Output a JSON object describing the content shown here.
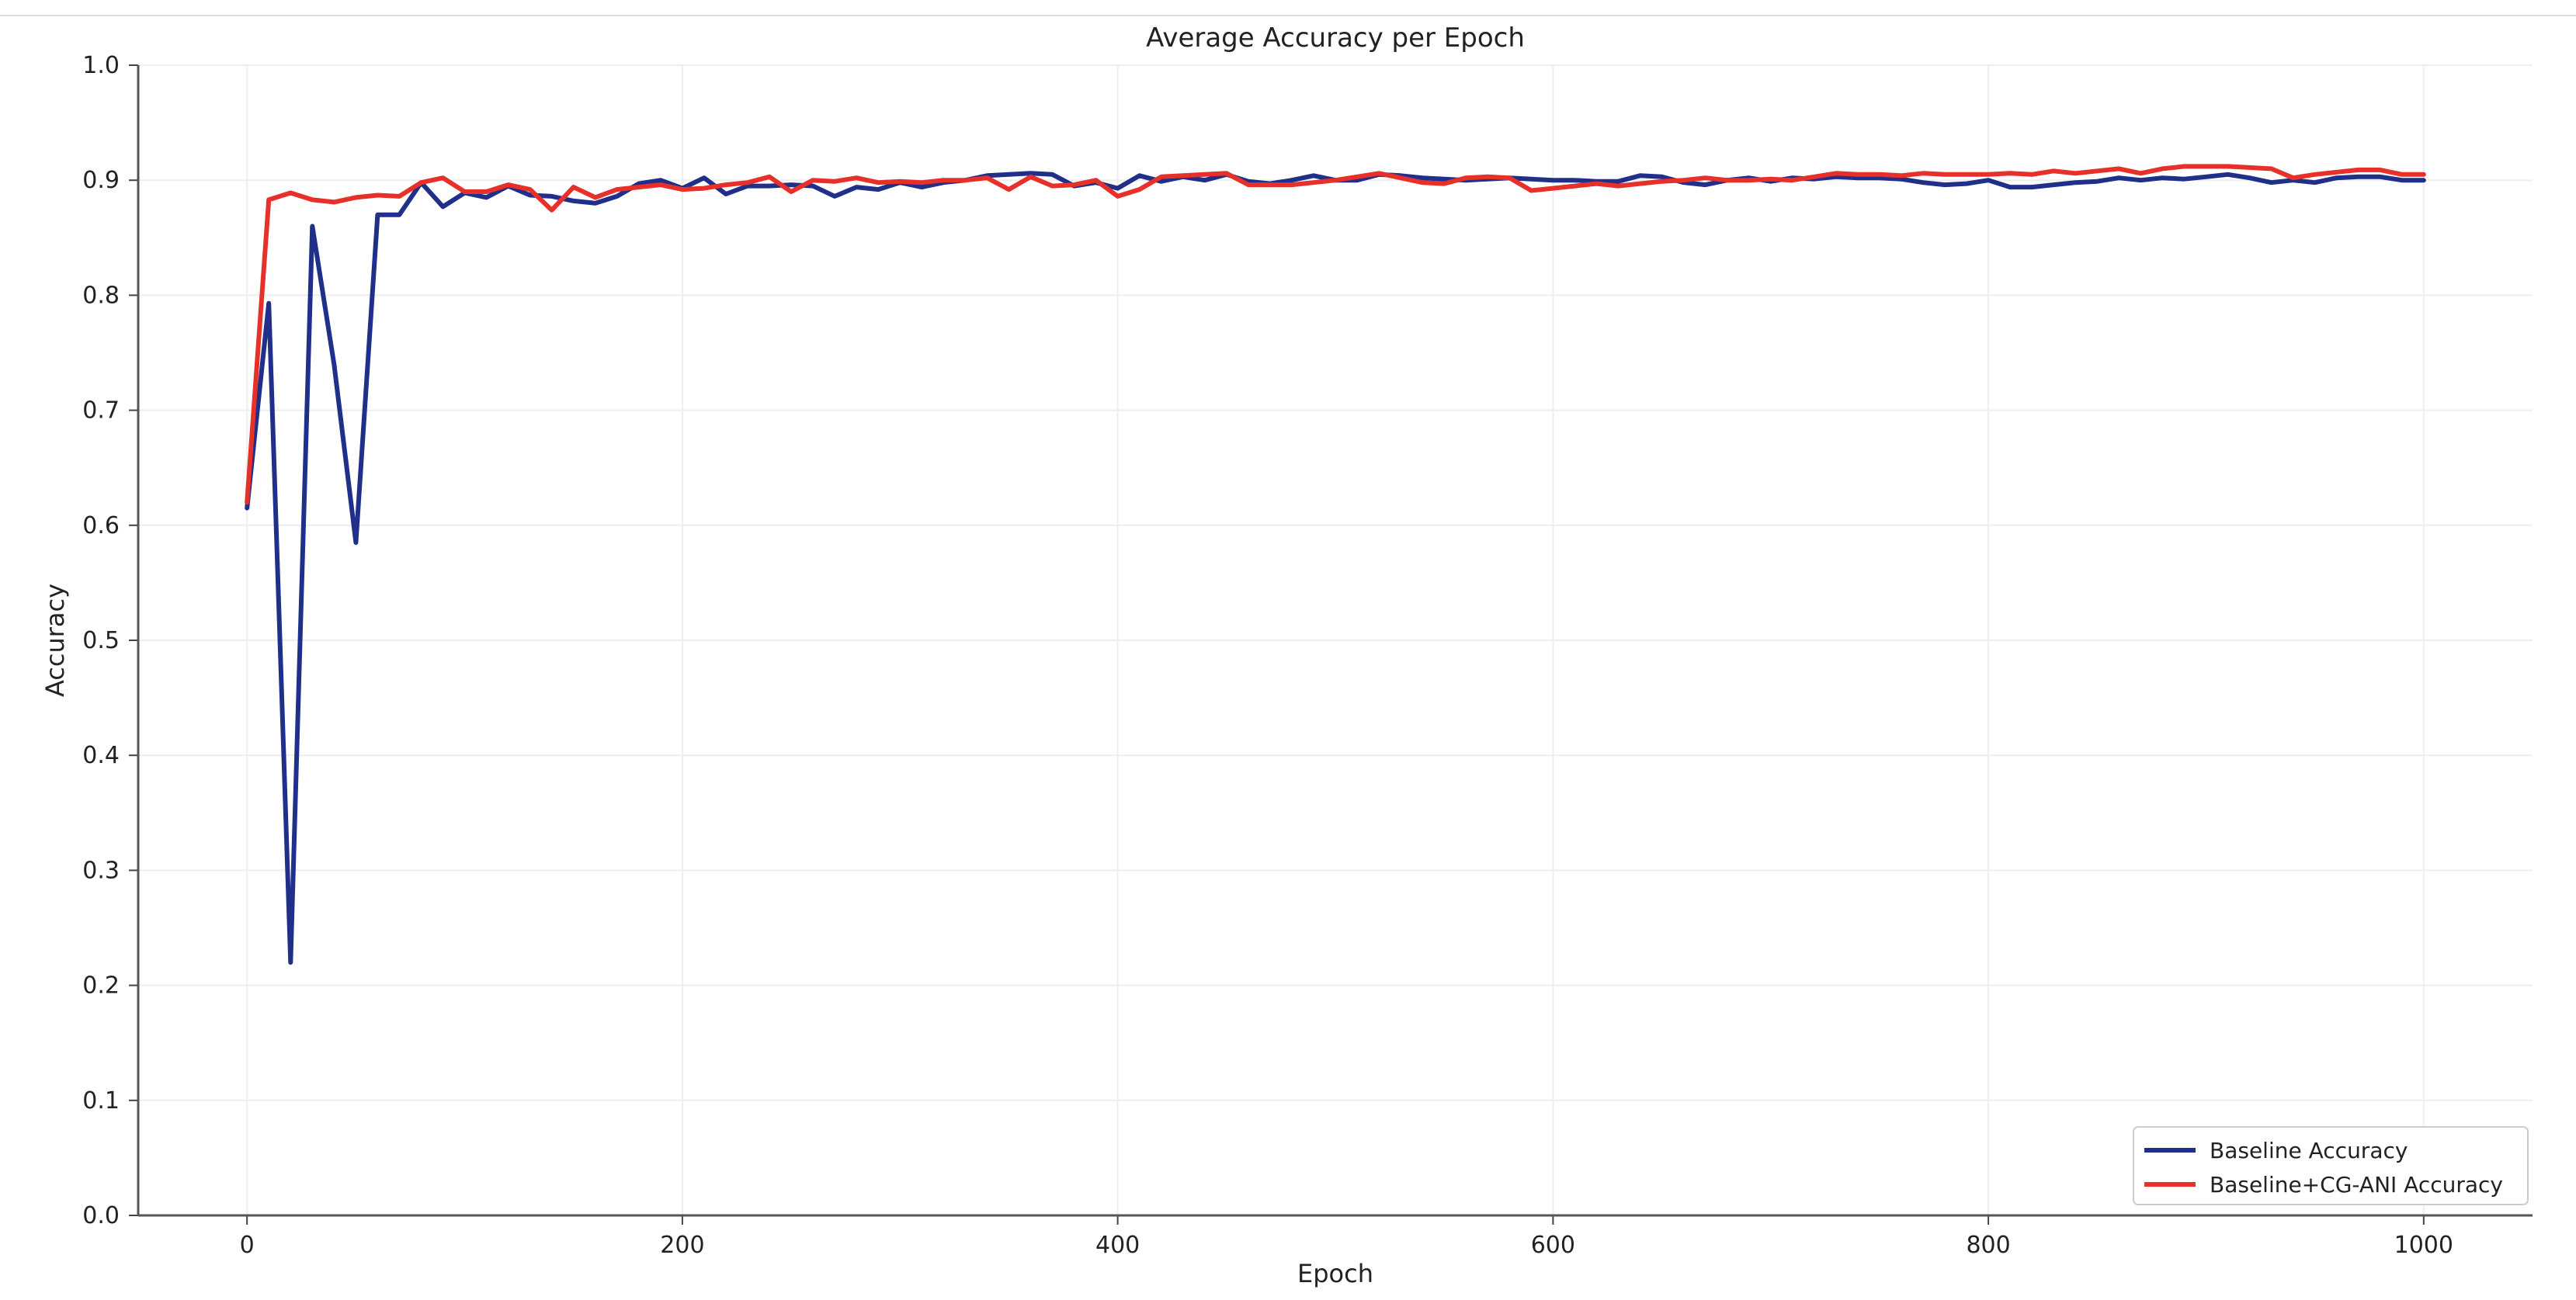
{
  "chart_data": {
    "type": "line",
    "title": "Average Accuracy per Epoch",
    "xlabel": "Epoch",
    "ylabel": "Accuracy",
    "xlim": [
      -50,
      1050
    ],
    "ylim": [
      0.0,
      1.0
    ],
    "xticks": [
      0,
      200,
      400,
      600,
      800,
      1000
    ],
    "yticks": [
      0.0,
      0.1,
      0.2,
      0.3,
      0.4,
      0.5,
      0.6,
      0.7,
      0.8,
      0.9,
      1.0
    ],
    "grid": true,
    "legend_position": "bottom-right",
    "series": [
      {
        "name": "Baseline Accuracy",
        "color": "#1f2f8a",
        "points": [
          [
            0,
            0.615
          ],
          [
            10,
            0.793
          ],
          [
            20,
            0.22
          ],
          [
            30,
            0.86
          ],
          [
            40,
            0.74
          ],
          [
            50,
            0.585
          ],
          [
            60,
            0.87
          ],
          [
            70,
            0.87
          ],
          [
            80,
            0.898
          ],
          [
            90,
            0.877
          ],
          [
            100,
            0.889
          ],
          [
            110,
            0.885
          ],
          [
            120,
            0.895
          ],
          [
            130,
            0.887
          ],
          [
            140,
            0.886
          ],
          [
            150,
            0.882
          ],
          [
            160,
            0.88
          ],
          [
            170,
            0.886
          ],
          [
            180,
            0.897
          ],
          [
            190,
            0.9
          ],
          [
            200,
            0.893
          ],
          [
            210,
            0.902
          ],
          [
            220,
            0.888
          ],
          [
            230,
            0.895
          ],
          [
            240,
            0.895
          ],
          [
            250,
            0.896
          ],
          [
            260,
            0.895
          ],
          [
            270,
            0.886
          ],
          [
            280,
            0.894
          ],
          [
            290,
            0.892
          ],
          [
            300,
            0.898
          ],
          [
            310,
            0.894
          ],
          [
            320,
            0.898
          ],
          [
            330,
            0.9
          ],
          [
            340,
            0.904
          ],
          [
            350,
            0.905
          ],
          [
            360,
            0.906
          ],
          [
            370,
            0.905
          ],
          [
            380,
            0.895
          ],
          [
            390,
            0.898
          ],
          [
            400,
            0.893
          ],
          [
            410,
            0.904
          ],
          [
            420,
            0.899
          ],
          [
            430,
            0.903
          ],
          [
            440,
            0.9
          ],
          [
            450,
            0.905
          ],
          [
            460,
            0.899
          ],
          [
            470,
            0.897
          ],
          [
            480,
            0.9
          ],
          [
            490,
            0.904
          ],
          [
            500,
            0.9
          ],
          [
            510,
            0.9
          ],
          [
            520,
            0.905
          ],
          [
            530,
            0.904
          ],
          [
            540,
            0.902
          ],
          [
            550,
            0.901
          ],
          [
            560,
            0.9
          ],
          [
            570,
            0.901
          ],
          [
            580,
            0.902
          ],
          [
            590,
            0.901
          ],
          [
            600,
            0.9
          ],
          [
            610,
            0.9
          ],
          [
            620,
            0.899
          ],
          [
            630,
            0.899
          ],
          [
            640,
            0.904
          ],
          [
            650,
            0.903
          ],
          [
            660,
            0.898
          ],
          [
            670,
            0.896
          ],
          [
            680,
            0.9
          ],
          [
            690,
            0.902
          ],
          [
            700,
            0.899
          ],
          [
            710,
            0.902
          ],
          [
            720,
            0.901
          ],
          [
            730,
            0.903
          ],
          [
            740,
            0.902
          ],
          [
            750,
            0.902
          ],
          [
            760,
            0.901
          ],
          [
            770,
            0.898
          ],
          [
            780,
            0.896
          ],
          [
            790,
            0.897
          ],
          [
            800,
            0.9
          ],
          [
            810,
            0.894
          ],
          [
            820,
            0.894
          ],
          [
            830,
            0.896
          ],
          [
            840,
            0.898
          ],
          [
            850,
            0.899
          ],
          [
            860,
            0.902
          ],
          [
            870,
            0.9
          ],
          [
            880,
            0.902
          ],
          [
            890,
            0.901
          ],
          [
            900,
            0.903
          ],
          [
            910,
            0.905
          ],
          [
            920,
            0.902
          ],
          [
            930,
            0.898
          ],
          [
            940,
            0.9
          ],
          [
            950,
            0.898
          ],
          [
            960,
            0.902
          ],
          [
            970,
            0.903
          ],
          [
            980,
            0.903
          ],
          [
            990,
            0.9
          ],
          [
            1000,
            0.9
          ]
        ]
      },
      {
        "name": "Baseline+CG-ANI Accuracy",
        "color": "#e8302a",
        "points": [
          [
            0,
            0.62
          ],
          [
            10,
            0.883
          ],
          [
            20,
            0.889
          ],
          [
            30,
            0.883
          ],
          [
            40,
            0.881
          ],
          [
            50,
            0.885
          ],
          [
            60,
            0.887
          ],
          [
            70,
            0.886
          ],
          [
            80,
            0.898
          ],
          [
            90,
            0.902
          ],
          [
            100,
            0.89
          ],
          [
            110,
            0.89
          ],
          [
            120,
            0.896
          ],
          [
            130,
            0.892
          ],
          [
            140,
            0.874
          ],
          [
            150,
            0.894
          ],
          [
            160,
            0.885
          ],
          [
            170,
            0.892
          ],
          [
            180,
            0.894
          ],
          [
            190,
            0.896
          ],
          [
            200,
            0.892
          ],
          [
            210,
            0.893
          ],
          [
            220,
            0.896
          ],
          [
            230,
            0.898
          ],
          [
            240,
            0.903
          ],
          [
            250,
            0.89
          ],
          [
            260,
            0.9
          ],
          [
            270,
            0.899
          ],
          [
            280,
            0.902
          ],
          [
            290,
            0.898
          ],
          [
            300,
            0.899
          ],
          [
            310,
            0.898
          ],
          [
            320,
            0.9
          ],
          [
            330,
            0.9
          ],
          [
            340,
            0.902
          ],
          [
            350,
            0.892
          ],
          [
            360,
            0.903
          ],
          [
            370,
            0.895
          ],
          [
            380,
            0.896
          ],
          [
            390,
            0.9
          ],
          [
            400,
            0.886
          ],
          [
            410,
            0.892
          ],
          [
            420,
            0.903
          ],
          [
            430,
            0.904
          ],
          [
            440,
            0.905
          ],
          [
            450,
            0.906
          ],
          [
            460,
            0.896
          ],
          [
            470,
            0.896
          ],
          [
            480,
            0.896
          ],
          [
            490,
            0.898
          ],
          [
            500,
            0.9
          ],
          [
            510,
            0.903
          ],
          [
            520,
            0.906
          ],
          [
            530,
            0.902
          ],
          [
            540,
            0.898
          ],
          [
            550,
            0.897
          ],
          [
            560,
            0.902
          ],
          [
            570,
            0.903
          ],
          [
            580,
            0.902
          ],
          [
            590,
            0.891
          ],
          [
            600,
            0.893
          ],
          [
            610,
            0.895
          ],
          [
            620,
            0.897
          ],
          [
            630,
            0.895
          ],
          [
            640,
            0.897
          ],
          [
            650,
            0.899
          ],
          [
            660,
            0.9
          ],
          [
            670,
            0.902
          ],
          [
            680,
            0.9
          ],
          [
            690,
            0.9
          ],
          [
            700,
            0.901
          ],
          [
            710,
            0.9
          ],
          [
            720,
            0.903
          ],
          [
            730,
            0.906
          ],
          [
            740,
            0.905
          ],
          [
            750,
            0.905
          ],
          [
            760,
            0.904
          ],
          [
            770,
            0.906
          ],
          [
            780,
            0.905
          ],
          [
            790,
            0.905
          ],
          [
            800,
            0.905
          ],
          [
            810,
            0.906
          ],
          [
            820,
            0.905
          ],
          [
            830,
            0.908
          ],
          [
            840,
            0.906
          ],
          [
            850,
            0.908
          ],
          [
            860,
            0.91
          ],
          [
            870,
            0.906
          ],
          [
            880,
            0.91
          ],
          [
            890,
            0.912
          ],
          [
            900,
            0.912
          ],
          [
            910,
            0.912
          ],
          [
            920,
            0.911
          ],
          [
            930,
            0.91
          ],
          [
            940,
            0.902
          ],
          [
            950,
            0.905
          ],
          [
            960,
            0.907
          ],
          [
            970,
            0.909
          ],
          [
            980,
            0.909
          ],
          [
            990,
            0.905
          ],
          [
            1000,
            0.905
          ]
        ]
      }
    ]
  }
}
